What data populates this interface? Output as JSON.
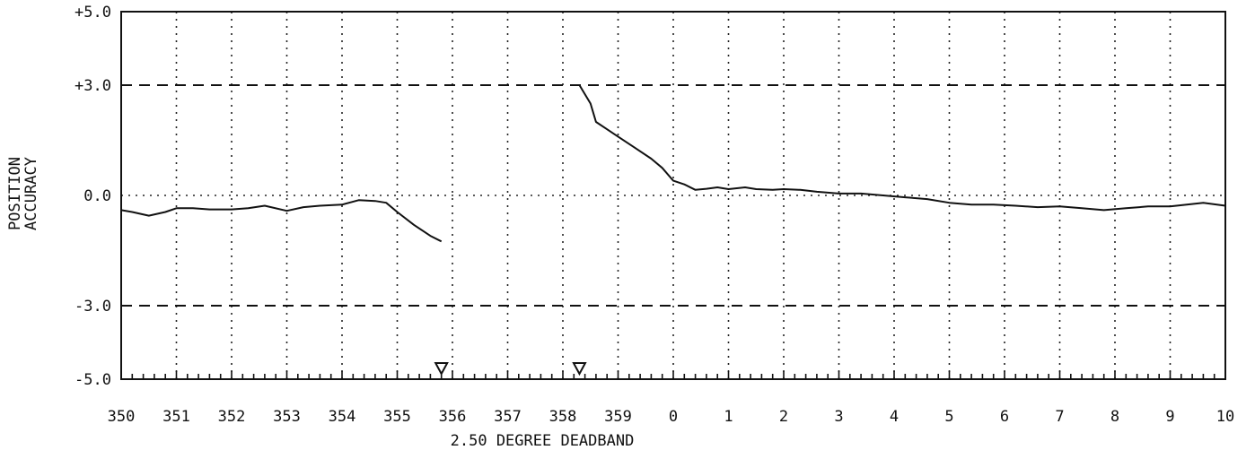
{
  "chart_data": {
    "type": "line",
    "title": "",
    "xlabel": "2.50 DEGREE DEADBAND",
    "ylabel": [
      "POSITION",
      "ACCURACY"
    ],
    "xlim": [
      -10,
      10
    ],
    "ylim": [
      -5,
      5
    ],
    "x_tick_labels": [
      "350",
      "351",
      "352",
      "353",
      "354",
      "355",
      "356",
      "357",
      "358",
      "359",
      "0",
      "1",
      "2",
      "3",
      "4",
      "5",
      "6",
      "7",
      "8",
      "9",
      "10"
    ],
    "y_tick_labels": [
      {
        "value": 5,
        "label": "+5.0"
      },
      {
        "value": 3,
        "label": "+3.0"
      },
      {
        "value": 0,
        "label": "0.0"
      },
      {
        "value": -3,
        "label": "-3.0"
      },
      {
        "value": -5,
        "label": "-5.0"
      }
    ],
    "dashed_reference_lines": [
      3,
      -3
    ],
    "grid": "dotted",
    "deadband_markers": [
      355.8,
      358.3
    ],
    "series": [
      {
        "values": [
          [
            350.0,
            -0.4
          ],
          [
            350.2,
            -0.45
          ],
          [
            350.5,
            -0.55
          ],
          [
            350.8,
            -0.45
          ],
          [
            351.0,
            -0.35
          ],
          [
            351.3,
            -0.35
          ],
          [
            351.6,
            -0.38
          ],
          [
            352.0,
            -0.38
          ],
          [
            352.3,
            -0.35
          ],
          [
            352.6,
            -0.28
          ],
          [
            353.0,
            -0.42
          ],
          [
            353.3,
            -0.32
          ],
          [
            353.6,
            -0.28
          ],
          [
            354.0,
            -0.25
          ],
          [
            354.3,
            -0.13
          ],
          [
            354.6,
            -0.15
          ],
          [
            354.8,
            -0.2
          ],
          [
            355.0,
            -0.45
          ],
          [
            355.3,
            -0.8
          ],
          [
            355.6,
            -1.1
          ],
          [
            355.8,
            -1.25
          ]
        ]
      },
      {
        "values": [
          [
            358.3,
            3.0
          ],
          [
            358.5,
            2.5
          ],
          [
            358.6,
            2.0
          ],
          [
            358.8,
            1.8
          ],
          [
            359.0,
            1.6
          ],
          [
            359.3,
            1.3
          ],
          [
            359.6,
            1.0
          ],
          [
            359.8,
            0.75
          ],
          [
            360.0,
            0.4
          ],
          [
            360.2,
            0.3
          ],
          [
            360.4,
            0.15
          ],
          [
            360.6,
            0.18
          ],
          [
            360.8,
            0.22
          ],
          [
            361.0,
            0.17
          ],
          [
            361.3,
            0.22
          ],
          [
            361.5,
            0.17
          ],
          [
            361.8,
            0.15
          ],
          [
            362.0,
            0.17
          ],
          [
            362.3,
            0.15
          ],
          [
            362.6,
            0.1
          ],
          [
            363.0,
            0.05
          ],
          [
            363.4,
            0.05
          ],
          [
            363.8,
            0.0
          ],
          [
            364.2,
            -0.05
          ],
          [
            364.6,
            -0.1
          ],
          [
            365.0,
            -0.2
          ],
          [
            365.4,
            -0.25
          ],
          [
            365.8,
            -0.25
          ],
          [
            366.2,
            -0.28
          ],
          [
            366.6,
            -0.32
          ],
          [
            367.0,
            -0.3
          ],
          [
            367.4,
            -0.35
          ],
          [
            367.8,
            -0.4
          ],
          [
            368.2,
            -0.35
          ],
          [
            368.6,
            -0.3
          ],
          [
            369.0,
            -0.3
          ],
          [
            369.3,
            -0.25
          ],
          [
            369.6,
            -0.2
          ],
          [
            370.0,
            -0.28
          ]
        ]
      }
    ]
  }
}
